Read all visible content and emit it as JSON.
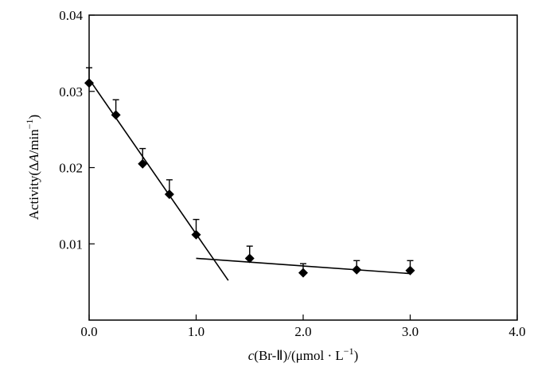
{
  "chart_data": {
    "type": "scatter",
    "xlabel_parts": {
      "var": "c",
      "rest": "(Br-Ⅱ)/(μmol · L",
      "sup": "−1",
      "close": ")"
    },
    "ylabel_parts": {
      "pre": "Activity(Δ",
      "var": "A",
      "rest": "/min",
      "sup": "−1",
      "close": ")"
    },
    "xlim": [
      0,
      4.0
    ],
    "ylim": [
      0,
      0.04
    ],
    "x_ticks": [
      0,
      1,
      2,
      3,
      4
    ],
    "x_tick_labels": [
      "0.0",
      "1.0",
      "2.0",
      "3.0",
      "4.0"
    ],
    "y_ticks": [
      0.01,
      0.02,
      0.03,
      0.04
    ],
    "y_tick_labels": [
      "0.01",
      "0.02",
      "0.03",
      "0.04"
    ],
    "grid": false,
    "legend": "none",
    "points": [
      {
        "x": 0.0,
        "y": 0.0311,
        "err": 0.002
      },
      {
        "x": 0.25,
        "y": 0.0269,
        "err": 0.002
      },
      {
        "x": 0.5,
        "y": 0.0205,
        "err": 0.002
      },
      {
        "x": 0.75,
        "y": 0.0165,
        "err": 0.0019
      },
      {
        "x": 1.0,
        "y": 0.0112,
        "err": 0.002
      },
      {
        "x": 1.5,
        "y": 0.0081,
        "err": 0.0016
      },
      {
        "x": 2.0,
        "y": 0.0062,
        "err": 0.0012
      },
      {
        "x": 2.5,
        "y": 0.0066,
        "err": 0.0012
      },
      {
        "x": 3.0,
        "y": 0.0065,
        "err": 0.0013
      }
    ],
    "fit_lines": [
      {
        "from": [
          0.0,
          0.0316
        ],
        "to": [
          1.3,
          0.0052
        ]
      },
      {
        "from": [
          1.0,
          0.0081
        ],
        "to": [
          3.0,
          0.0061
        ]
      }
    ],
    "colors": {
      "marker": "#000000",
      "line": "#000000",
      "axis": "#000000"
    }
  }
}
